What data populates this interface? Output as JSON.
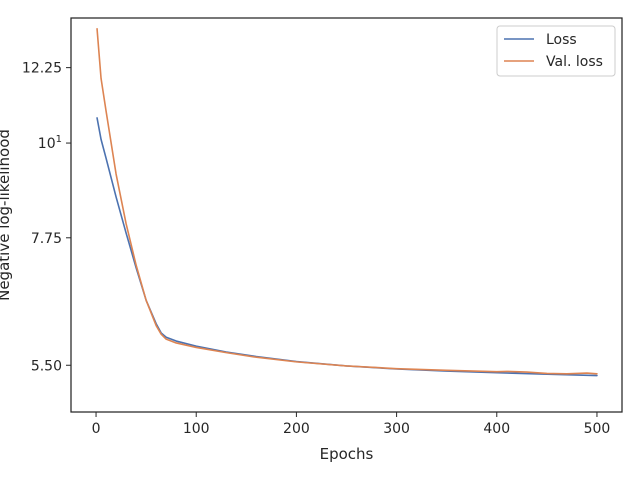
{
  "chart_data": {
    "type": "line",
    "title": "",
    "xlabel": "Epochs",
    "ylabel": "Negative log-likelihood",
    "xlim": [
      -25,
      525
    ],
    "ylim": [
      4.85,
      14.0
    ],
    "yscale": "log",
    "grid": false,
    "legend": "top-right",
    "x_ticks": [
      {
        "value": 0,
        "label": "0"
      },
      {
        "value": 100,
        "label": "100"
      },
      {
        "value": 200,
        "label": "200"
      },
      {
        "value": 300,
        "label": "300"
      },
      {
        "value": 400,
        "label": "400"
      },
      {
        "value": 500,
        "label": "500"
      }
    ],
    "y_ticks": [
      {
        "value": 5.5,
        "label": "5.50"
      },
      {
        "value": 7.75,
        "label": "7.75"
      },
      {
        "value": 10,
        "label": "10",
        "exponent": "1"
      },
      {
        "value": 12.25,
        "label": "12.25"
      }
    ],
    "series": [
      {
        "name": "Loss",
        "color": "#4c72b0",
        "x": [
          1,
          5,
          10,
          20,
          30,
          40,
          50,
          60,
          65,
          70,
          80,
          100,
          130,
          160,
          200,
          250,
          300,
          350,
          400,
          450,
          500
        ],
        "y": [
          10.7,
          10.1,
          9.6,
          8.65,
          7.85,
          7.15,
          6.55,
          6.15,
          6.0,
          5.93,
          5.87,
          5.79,
          5.7,
          5.63,
          5.555,
          5.49,
          5.445,
          5.415,
          5.39,
          5.37,
          5.35
        ]
      },
      {
        "name": "Val. loss",
        "color": "#dd8452",
        "x": [
          1,
          5,
          10,
          20,
          30,
          40,
          50,
          60,
          65,
          70,
          80,
          100,
          130,
          160,
          200,
          250,
          300,
          350,
          400,
          410,
          430,
          450,
          470,
          490,
          500
        ],
        "y": [
          13.6,
          11.9,
          10.9,
          9.2,
          8.05,
          7.2,
          6.55,
          6.12,
          5.98,
          5.9,
          5.84,
          5.77,
          5.69,
          5.62,
          5.55,
          5.49,
          5.45,
          5.425,
          5.405,
          5.41,
          5.4,
          5.38,
          5.375,
          5.385,
          5.375
        ]
      }
    ]
  }
}
